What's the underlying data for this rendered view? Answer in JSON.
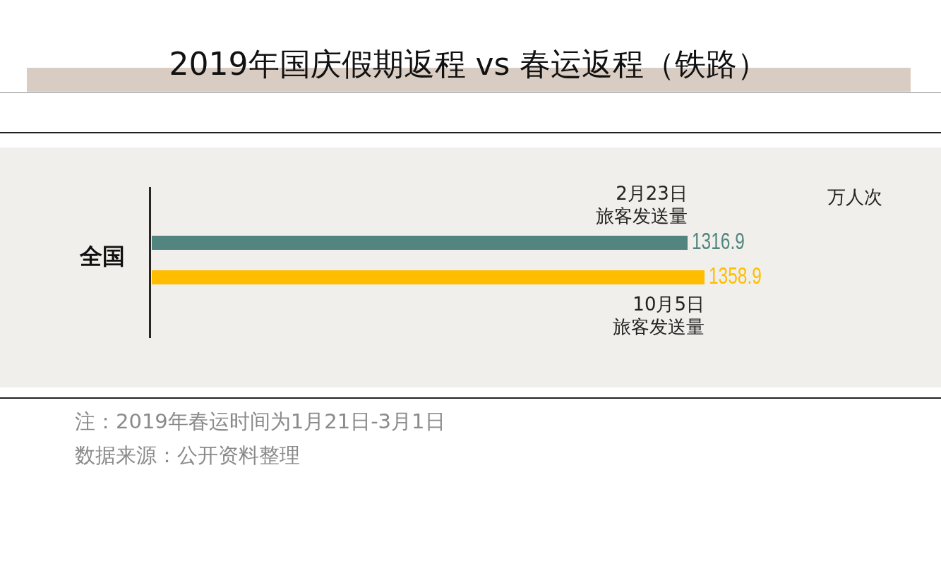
{
  "chart_data": {
    "type": "bar",
    "orientation": "horizontal",
    "title": "2019年国庆假期返程 vs 春运返程（铁路）",
    "categories": [
      "全国"
    ],
    "legend": false,
    "data_labels": true,
    "series": [
      {
        "name": "2月23日旅客发送量",
        "color": "#52857f",
        "values": [
          1316.9
        ]
      },
      {
        "name": "10月5日旅客发送量",
        "color": "#ffbd00",
        "values": [
          1358.9
        ]
      }
    ],
    "annotations": [
      "万人次",
      "注：2019年春运时间为1月21日-3月1日",
      "数据来源：公开资料整理"
    ]
  }
}
